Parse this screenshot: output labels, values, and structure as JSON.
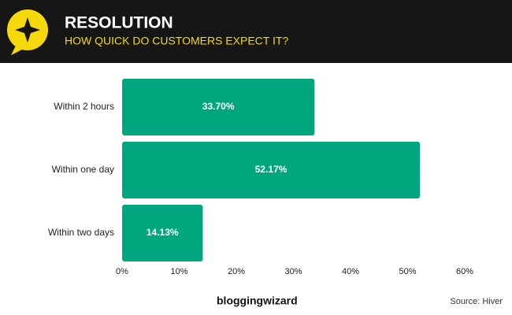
{
  "chart_data": {
    "type": "bar",
    "orientation": "horizontal",
    "title": "RESOLUTION",
    "subtitle": "HOW QUICK DO CUSTOMERS EXPECT IT?",
    "categories": [
      "Within 2 hours",
      "Within one day",
      "Within two days"
    ],
    "values": [
      33.7,
      52.17,
      14.13
    ],
    "value_labels": [
      "33.70%",
      "52.17%",
      "14.13%"
    ],
    "color": "#00a67e",
    "xlim": [
      0,
      60
    ],
    "xticks": [
      {
        "value": 0,
        "label": "0%"
      },
      {
        "value": 10,
        "label": "10%"
      },
      {
        "value": 20,
        "label": "20%"
      },
      {
        "value": 30,
        "label": "30%"
      },
      {
        "value": 40,
        "label": "40%"
      },
      {
        "value": 50,
        "label": "50%"
      },
      {
        "value": 60,
        "label": "60%"
      }
    ],
    "grid": false,
    "brand": "bloggingwizard",
    "source": "Source: Hiver"
  }
}
